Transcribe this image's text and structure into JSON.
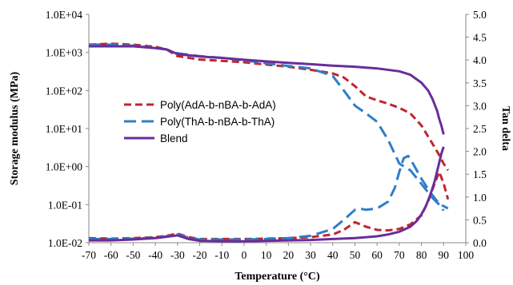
{
  "chart_data": {
    "type": "line",
    "title": "",
    "xlabel": "Temperature (°C)",
    "ylabel_left": "Storage modulus (MPa)",
    "ylabel_right": "Tan delta",
    "xlim": [
      -70,
      100
    ],
    "ylim_left": [
      0.01,
      10000
    ],
    "ylim_right": [
      0,
      5
    ],
    "y_left_scale": "log",
    "x_ticks": [
      "-70",
      "-60",
      "-50",
      "-40",
      "-30",
      "-20",
      "-10",
      "0",
      "10",
      "20",
      "30",
      "40",
      "50",
      "60",
      "70",
      "80",
      "90",
      "100"
    ],
    "y_left_ticks": [
      "1.0E-02",
      "1.0E-01",
      "1.0E+00",
      "1.0E+01",
      "1.0E+02",
      "1.0E+03",
      "1.0E+04"
    ],
    "y_right_ticks": [
      "0.0",
      "0.5",
      "1.0",
      "1.5",
      "2.0",
      "2.5",
      "3.0",
      "3.5",
      "4.0",
      "4.5",
      "5.0"
    ],
    "grid": false,
    "legend_position": "center-left",
    "legend_entries": [
      "Poly(AdA-b-nBA-b-AdA)",
      "Poly(ThA-b-nBA-b-ThA)",
      "Blend"
    ],
    "series": [
      {
        "name": "Poly(AdA-b-nBA-b-AdA)",
        "color": "#c0262d",
        "dash": "dashed",
        "storage_modulus": {
          "x": [
            -70,
            -60,
            -50,
            -40,
            -35,
            -30,
            -20,
            -10,
            0,
            10,
            20,
            30,
            40,
            45,
            50,
            55,
            60,
            65,
            70,
            75,
            80,
            85,
            88,
            90,
            92
          ],
          "y": [
            1600,
            1700,
            1600,
            1400,
            1200,
            800,
            650,
            600,
            550,
            480,
            420,
            350,
            280,
            220,
            130,
            70,
            55,
            45,
            35,
            25,
            12,
            4,
            2,
            1.2,
            0.8
          ]
        },
        "tan_delta": {
          "x": [
            -70,
            -60,
            -50,
            -40,
            -35,
            -30,
            -25,
            -20,
            -10,
            0,
            10,
            20,
            30,
            40,
            45,
            50,
            55,
            60,
            65,
            70,
            75,
            80,
            83,
            86,
            88,
            90,
            92
          ],
          "y": [
            0.1,
            0.09,
            0.1,
            0.12,
            0.15,
            0.2,
            0.12,
            0.08,
            0.08,
            0.08,
            0.09,
            0.1,
            0.12,
            0.18,
            0.28,
            0.45,
            0.35,
            0.28,
            0.27,
            0.3,
            0.4,
            0.6,
            0.9,
            1.3,
            1.55,
            1.3,
            0.95
          ]
        }
      },
      {
        "name": "Poly(ThA-b-nBA-b-ThA)",
        "color": "#2f7dc8",
        "dash": "long-dashed",
        "storage_modulus": {
          "x": [
            -70,
            -60,
            -50,
            -40,
            -35,
            -30,
            -20,
            -10,
            0,
            10,
            20,
            30,
            40,
            45,
            50,
            55,
            60,
            65,
            70,
            75,
            80,
            85,
            88,
            90
          ],
          "y": [
            1600,
            1600,
            1500,
            1300,
            1200,
            950,
            800,
            720,
            620,
            520,
            440,
            380,
            240,
            100,
            40,
            25,
            15,
            5,
            1.2,
            0.8,
            0.35,
            0.15,
            0.1,
            0.07
          ]
        },
        "tan_delta": {
          "x": [
            -70,
            -60,
            -50,
            -40,
            -35,
            -30,
            -25,
            -20,
            -10,
            0,
            10,
            20,
            30,
            40,
            45,
            50,
            52,
            55,
            60,
            65,
            68,
            70,
            72,
            74,
            76,
            80,
            84,
            88,
            90,
            92
          ],
          "y": [
            0.08,
            0.08,
            0.09,
            0.11,
            0.14,
            0.18,
            0.11,
            0.07,
            0.07,
            0.07,
            0.08,
            0.1,
            0.15,
            0.3,
            0.5,
            0.72,
            0.75,
            0.72,
            0.75,
            0.9,
            1.2,
            1.55,
            1.85,
            1.9,
            1.75,
            1.4,
            1.1,
            0.85,
            0.8,
            0.75
          ]
        }
      },
      {
        "name": "Blend",
        "color": "#6a2c9a",
        "dash": "solid",
        "storage_modulus": {
          "x": [
            -70,
            -60,
            -50,
            -40,
            -35,
            -30,
            -20,
            -10,
            0,
            10,
            20,
            30,
            40,
            50,
            60,
            70,
            75,
            80,
            83,
            85,
            87,
            88,
            89,
            90
          ],
          "y": [
            1450,
            1450,
            1450,
            1300,
            1200,
            900,
            780,
            720,
            640,
            580,
            530,
            490,
            450,
            420,
            380,
            320,
            260,
            160,
            100,
            60,
            30,
            18,
            12,
            7
          ]
        },
        "tan_delta": {
          "x": [
            -70,
            -60,
            -50,
            -40,
            -35,
            -30,
            -25,
            -20,
            -10,
            0,
            10,
            20,
            30,
            40,
            50,
            60,
            65,
            70,
            75,
            78,
            80,
            82,
            84,
            86,
            88,
            89,
            90
          ],
          "y": [
            0.05,
            0.05,
            0.07,
            0.1,
            0.13,
            0.16,
            0.08,
            0.04,
            0.03,
            0.03,
            0.04,
            0.05,
            0.06,
            0.08,
            0.1,
            0.14,
            0.18,
            0.24,
            0.35,
            0.48,
            0.62,
            0.8,
            1.05,
            1.35,
            1.75,
            1.95,
            2.1
          ]
        }
      }
    ]
  }
}
